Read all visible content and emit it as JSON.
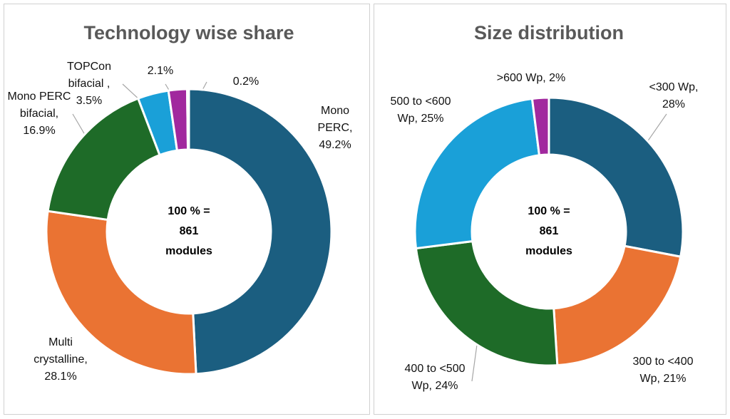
{
  "chart_data": [
    {
      "type": "donut",
      "title": "Technology wise share",
      "center_label": [
        "100 % =",
        "861",
        "modules"
      ],
      "categories": [
        "Mono PERC,",
        "Multi crystalline,",
        "Mono PERC bifacial,",
        "TOPCon bifacial ,",
        null,
        null
      ],
      "values": [
        49.2,
        28.1,
        16.9,
        3.5,
        2.1,
        0.2
      ],
      "value_labels": [
        "49.2%",
        "28.1%",
        "16.9%",
        "3.5%",
        "2.1%",
        "0.2%"
      ],
      "colors": [
        "#1b5e80",
        "#ea7333",
        "#1e6b28",
        "#1aa0d8",
        "#a1289e",
        "#7f7f7f"
      ]
    },
    {
      "type": "donut",
      "title": "Size distribution",
      "center_label": [
        "100 % =",
        "861",
        "modules"
      ],
      "categories": [
        "<300 Wp,",
        "300 to <400 Wp,",
        "400 to <500 Wp,",
        "500 to <600 Wp,",
        ">600 Wp,"
      ],
      "values": [
        28,
        21,
        24,
        25,
        2
      ],
      "value_labels": [
        "28%",
        "21%",
        "24%",
        "25%",
        "2%"
      ],
      "colors": [
        "#1b5e80",
        "#ea7333",
        "#1e6b28",
        "#1aa0d8",
        "#a1289e"
      ]
    }
  ]
}
